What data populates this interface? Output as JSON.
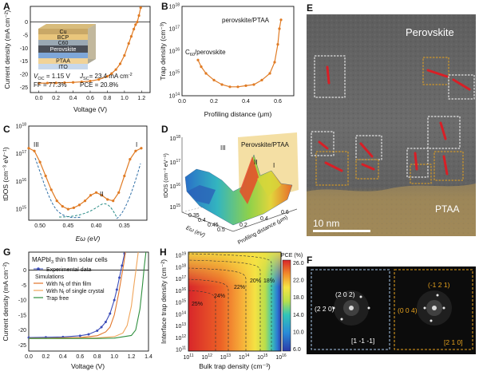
{
  "colors": {
    "orange": "#e07b24",
    "blue_dash": "#2e6ea6",
    "teal_dash": "#2a8c86",
    "tem_box_white": "#ffffff",
    "tem_box_yellow": "#e6a21e",
    "tem_marker": "#d81f26",
    "stack_colors": [
      "#c9a867",
      "#e9c67c",
      "#9aa8b3",
      "#4b4f57",
      "#7fa7d8",
      "#f1d398",
      "#c7d8ec"
    ]
  },
  "panels": {
    "A": {
      "label": "A"
    },
    "B": {
      "label": "B"
    },
    "C": {
      "label": "C"
    },
    "D": {
      "label": "D"
    },
    "E": {
      "label": "E"
    },
    "F": {
      "label": "F"
    },
    "G": {
      "label": "G"
    },
    "H": {
      "label": "H"
    }
  },
  "chart_data": [
    {
      "panel": "A",
      "type": "line",
      "xlabel": "Voltage (V)",
      "ylabel": "Current density (mA cm⁻²)",
      "xlim": [
        -0.1,
        1.3
      ],
      "ylim": [
        -27,
        6
      ],
      "xticks": [
        "0.0",
        "0.2",
        "0.4",
        "0.6",
        "0.8",
        "1.0",
        "1.2"
      ],
      "yticks": [
        "0",
        "-5",
        "-10",
        "-15",
        "-20",
        "-25"
      ],
      "series": [
        {
          "x": [
            0,
            0.1,
            0.2,
            0.3,
            0.4,
            0.5,
            0.6,
            0.7,
            0.8,
            0.85,
            0.9,
            0.95,
            1.0,
            1.05,
            1.08,
            1.11,
            1.13,
            1.15,
            1.17,
            1.19
          ],
          "y": [
            -23.4,
            -23.35,
            -23.3,
            -23.2,
            -23.1,
            -22.9,
            -22.6,
            -22.0,
            -20.8,
            -19.7,
            -18.2,
            -16.0,
            -12.8,
            -8.2,
            -5.5,
            -2.7,
            -1.0,
            0.0,
            2.5,
            5.5
          ]
        }
      ],
      "stack_layers": [
        "Cu",
        "BCP",
        "C60",
        "Perovskite",
        "PTAA",
        "ITO"
      ],
      "metrics": {
        "voc_label": "V",
        "voc_sub": "OC",
        "voc_value": " = 1.15 V",
        "jsc_label": "J",
        "jsc_sub": "SC",
        "jsc_value": "= 23.4 mA cm",
        "jsc_sup": "-2",
        "ff": "FF = 77.3%",
        "pce": "PCE = 20.8%"
      }
    },
    {
      "panel": "B",
      "type": "line",
      "xlabel": "Profiling distance (μm)",
      "ylabel": "Trap density (cm⁻³)",
      "xlim": [
        0,
        0.7
      ],
      "ylim": [
        "10^14",
        "10^18"
      ],
      "log_y": true,
      "xticks": [
        "0.0",
        "0.2",
        "0.4",
        "0.6"
      ],
      "yticks": [
        "10",
        "10",
        "10",
        "10",
        "10"
      ],
      "ytick_exp": [
        "14",
        "15",
        "16",
        "17",
        "18"
      ],
      "label_top": "perovskite/PTAA",
      "label_left_sub": "60",
      "label_left_pre": "C",
      "label_left": "/perovskite",
      "series": [
        {
          "x": [
            0.1,
            0.12,
            0.15,
            0.2,
            0.25,
            0.3,
            0.35,
            0.4,
            0.45,
            0.5,
            0.55,
            0.58,
            0.6,
            0.61,
            0.62
          ],
          "y_log10": [
            15.6,
            15.3,
            15.0,
            14.7,
            14.5,
            14.4,
            14.4,
            14.45,
            14.5,
            14.7,
            15.0,
            15.5,
            16.3,
            17.0,
            17.4
          ]
        }
      ]
    },
    {
      "panel": "C",
      "type": "line",
      "xlabel": "Eω (eV)",
      "ylabel": "tDOS (cm⁻³ eV⁻¹)",
      "xlim": [
        0.52,
        0.31
      ],
      "log_y": true,
      "xticks": [
        "0.50",
        "0.45",
        "0.40",
        "0.35"
      ],
      "yticks": [
        "10",
        "10",
        "10",
        "10"
      ],
      "ytick_exp": [
        "15",
        "16",
        "17",
        "18"
      ],
      "peaks": [
        "III",
        "II",
        "I"
      ],
      "series": [
        {
          "x": [
            0.52,
            0.51,
            0.5,
            0.49,
            0.48,
            0.47,
            0.46,
            0.45,
            0.44,
            0.43,
            0.42,
            0.41,
            0.4,
            0.39,
            0.38,
            0.37,
            0.36,
            0.35,
            0.34,
            0.33,
            0.32
          ],
          "y_log10": [
            17.2,
            17.1,
            16.7,
            16.2,
            15.7,
            15.3,
            15.1,
            15.0,
            15.05,
            15.15,
            15.3,
            15.5,
            15.6,
            15.5,
            15.35,
            15.3,
            15.6,
            16.2,
            16.8,
            17.1,
            17.2
          ]
        }
      ]
    },
    {
      "panel": "D",
      "type": "heatmap",
      "zlabel": "tDOS (cm⁻³ eV⁻¹)",
      "xlabel": "Profiling distance (μm)",
      "ylabel": "Eω (eV)",
      "band_label": "Perovskite/PTAA",
      "peaks": [
        "III",
        "II",
        "I"
      ],
      "zticks": [
        "10",
        "10",
        "10",
        "10"
      ],
      "ztick_exp": [
        "18",
        "17",
        "16",
        "15"
      ],
      "xticks": [
        "0.2",
        "0.4",
        "0.6"
      ],
      "yticks": [
        "0.35",
        "0.4",
        "0.45",
        "0.5"
      ]
    },
    {
      "panel": "G",
      "type": "line",
      "xlabel": "Voltage (V)",
      "ylabel": "Current density (mA cm⁻²)",
      "xlim": [
        0,
        1.4
      ],
      "ylim": [
        -27,
        6
      ],
      "xticks": [
        "0.0",
        "0.2",
        "0.4",
        "0.6",
        "0.8",
        "1.0",
        "1.2",
        "1.4"
      ],
      "yticks": [
        "0",
        "-5",
        "-10",
        "-15",
        "-20",
        "-25"
      ],
      "title": "MAPbI",
      "title_sub": "3",
      "title_rest": " thin film solar cells",
      "legend": [
        {
          "label": "Experimental data",
          "color": "#3b4cb8"
        },
        {
          "label": "Simulations",
          "color": "#000000"
        },
        {
          "label": "With N",
          "sub": "t",
          "rest": " of thin film",
          "color": "#e2762a"
        },
        {
          "label": "With N",
          "sub": "t",
          "rest": " of single crystal",
          "color": "#f0a55a"
        },
        {
          "label": "Trap free",
          "color": "#2f8f3e"
        }
      ],
      "series": [
        {
          "name": "Experimental data",
          "x": [
            0,
            0.2,
            0.4,
            0.6,
            0.7,
            0.8,
            0.85,
            0.9,
            0.95,
            1.0,
            1.03,
            1.06,
            1.09,
            1.12
          ],
          "y": [
            -22.5,
            -22.4,
            -22.3,
            -21.9,
            -21.4,
            -20.2,
            -19.0,
            -17.3,
            -14.5,
            -10.0,
            -6.5,
            -2.5,
            1.5,
            5.5
          ]
        },
        {
          "name": "With Nt of thin film",
          "x": [
            0,
            0.2,
            0.4,
            0.6,
            0.8,
            0.9,
            0.95,
            1.0,
            1.05,
            1.08,
            1.11,
            1.13
          ],
          "y": [
            -22.7,
            -22.7,
            -22.6,
            -22.5,
            -21.9,
            -20.6,
            -19.0,
            -15.0,
            -8.0,
            -3.0,
            2.0,
            6.0
          ]
        },
        {
          "name": "With Nt of single crystal",
          "x": [
            0,
            0.2,
            0.4,
            0.6,
            0.8,
            1.0,
            1.1,
            1.15,
            1.2,
            1.23,
            1.26,
            1.28
          ],
          "y": [
            -22.8,
            -22.8,
            -22.8,
            -22.7,
            -22.6,
            -22.2,
            -21.0,
            -18.5,
            -12.0,
            -5.0,
            1.5,
            6.0
          ]
        },
        {
          "name": "Trap free",
          "x": [
            0,
            0.2,
            0.4,
            0.6,
            0.8,
            1.0,
            1.2,
            1.25,
            1.3,
            1.33,
            1.35,
            1.37
          ],
          "y": [
            -22.8,
            -22.8,
            -22.8,
            -22.8,
            -22.8,
            -22.7,
            -21.8,
            -20.0,
            -13.0,
            -5.0,
            1.0,
            6.0
          ]
        }
      ]
    },
    {
      "panel": "H",
      "type": "heatmap",
      "xlabel": "Bulk trap density (cm⁻³)",
      "ylabel": "Interface trap density (cm⁻²)",
      "colorbar_label": "PCE (%)",
      "colorbar_ticks": [
        "26.0",
        "22.0",
        "18.0",
        "14.0",
        "10.0",
        "6.0"
      ],
      "xticks": [
        "10",
        "10",
        "10",
        "10",
        "10",
        "10"
      ],
      "xtick_exp": [
        "11",
        "12",
        "13",
        "14",
        "15",
        "16"
      ],
      "yticks": [
        "10",
        "10",
        "10",
        "10",
        "10",
        "10",
        "10",
        "10",
        "10"
      ],
      "ytick_exp": [
        "19",
        "18",
        "17",
        "16",
        "15",
        "14",
        "13",
        "12",
        "11"
      ],
      "contours": [
        "25%",
        "24%",
        "22%",
        "20%",
        "18%"
      ]
    }
  ],
  "E": {
    "top_label": "Perovskite",
    "bottom_label": "PTAA",
    "scale_label": "10 nm"
  },
  "F": {
    "left_labels": [
      "(2 0 2)",
      "(2 2 0)",
      "[1 -1 -1]"
    ],
    "right_labels": [
      "(-1 2 1)",
      "(0 0 4)",
      "[2 1 0]"
    ]
  }
}
